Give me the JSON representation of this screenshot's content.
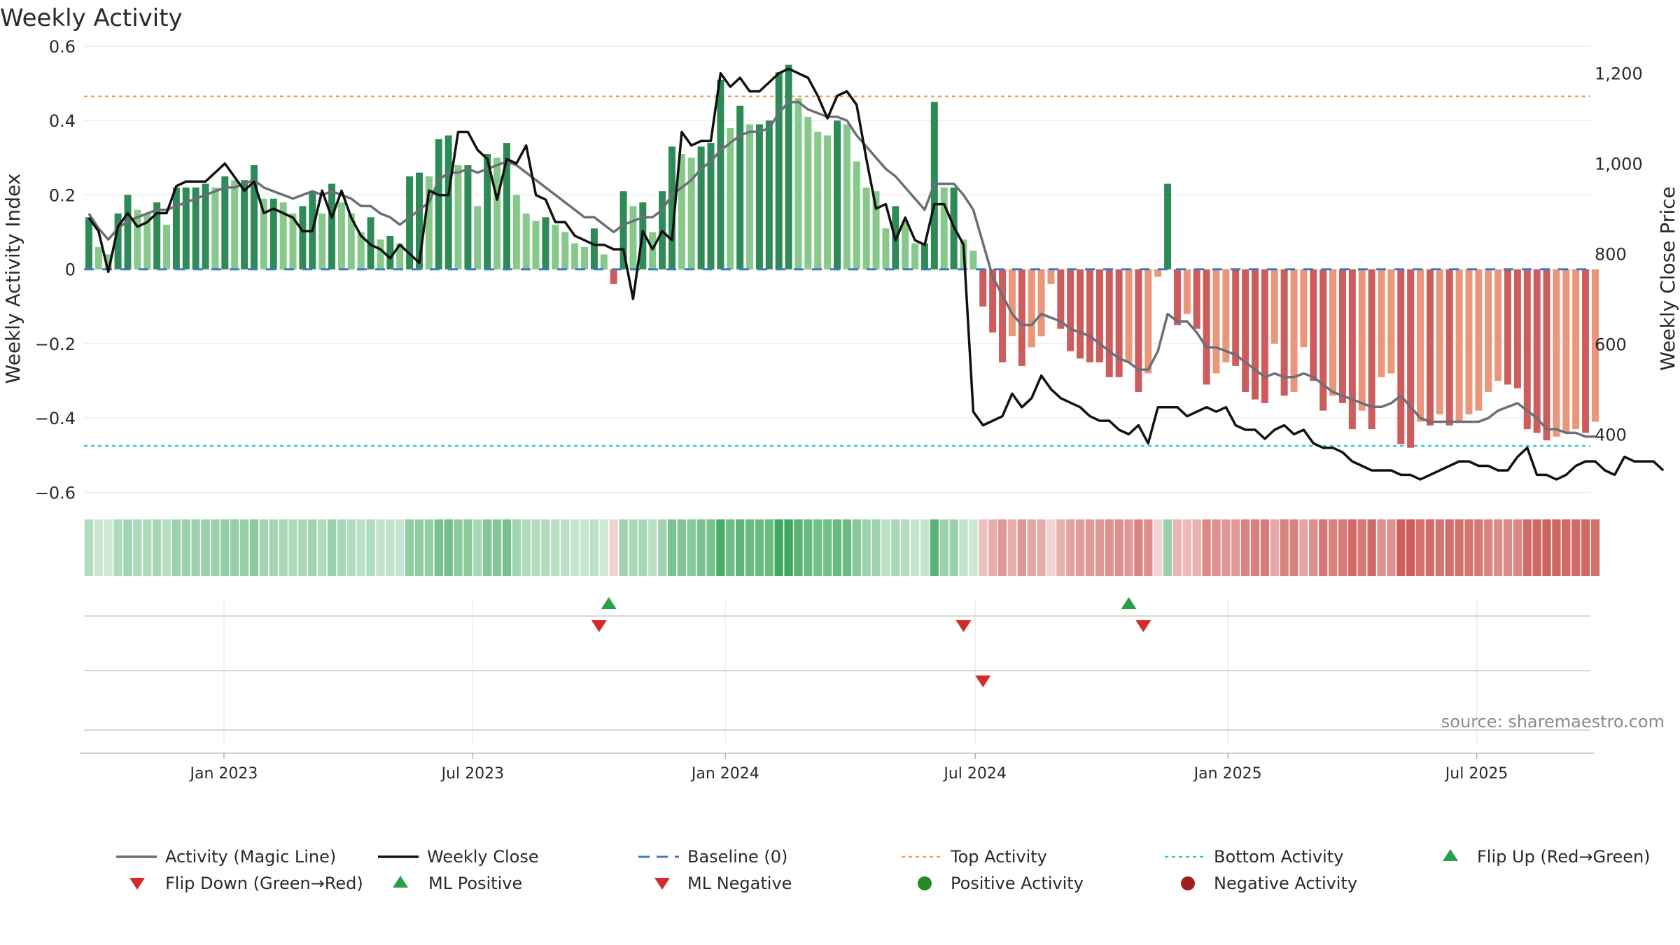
{
  "chart_data": {
    "type": "bar",
    "title": "Weekly Activity",
    "ylabel": "Weekly Activity Index",
    "y2label": "Weekly Close Price",
    "source": "source: sharemaestro.com",
    "ylim": [
      -0.65,
      0.6
    ],
    "y2lim": [
      230,
      1260
    ],
    "yticks": [
      0.6,
      0.4,
      0.2,
      0,
      -0.2,
      -0.4,
      -0.6
    ],
    "ytick_labels": [
      "0.6",
      "0.4",
      "0.2",
      "0",
      "−0.2",
      "−0.4",
      "−0.6"
    ],
    "y2ticks": [
      1200,
      1000,
      800,
      600,
      400
    ],
    "y2tick_labels": [
      "1,200",
      "1,000",
      "800",
      "600",
      "400"
    ],
    "x_range_weeks": [
      0,
      155
    ],
    "xticks": [
      {
        "label": "Jan 2023",
        "week": 14.4
      },
      {
        "label": "Jul 2023",
        "week": 40.0
      },
      {
        "label": "Jan 2024",
        "week": 66.0
      },
      {
        "label": "Jul 2024",
        "week": 91.7
      },
      {
        "label": "Jan 2025",
        "week": 117.7
      },
      {
        "label": "Jul 2025",
        "week": 143.3
      }
    ],
    "top_activity": 0.465,
    "bottom_activity": -0.475,
    "baseline": 0,
    "activity": [
      0.14,
      0.06,
      0.04,
      0.15,
      0.2,
      0.16,
      0.15,
      0.18,
      0.12,
      0.22,
      0.22,
      0.22,
      0.23,
      0.22,
      0.25,
      0.24,
      0.24,
      0.28,
      0.19,
      0.19,
      0.18,
      0.15,
      0.17,
      0.21,
      0.15,
      0.23,
      0.18,
      0.15,
      0.1,
      0.14,
      0.08,
      0.09,
      0.07,
      0.25,
      0.26,
      0.25,
      0.35,
      0.36,
      0.28,
      0.28,
      0.17,
      0.31,
      0.3,
      0.34,
      0.2,
      0.15,
      0.13,
      0.14,
      0.12,
      0.1,
      0.07,
      0.06,
      0.11,
      0.04,
      -0.04,
      0.21,
      0.17,
      0.18,
      0.1,
      0.21,
      0.33,
      0.31,
      0.3,
      0.33,
      0.34,
      0.51,
      0.38,
      0.44,
      0.39,
      0.39,
      0.4,
      0.53,
      0.55,
      0.46,
      0.41,
      0.37,
      0.36,
      0.4,
      0.39,
      0.29,
      0.22,
      0.21,
      0.11,
      0.17,
      0.13,
      0.07,
      0.07,
      0.45,
      0.22,
      0.22,
      0.08,
      0.05,
      -0.1,
      -0.17,
      -0.25,
      -0.18,
      -0.26,
      -0.21,
      -0.18,
      -0.04,
      -0.16,
      -0.22,
      -0.24,
      -0.25,
      -0.25,
      -0.29,
      -0.29,
      -0.25,
      -0.33,
      -0.28,
      -0.02,
      0.23,
      -0.15,
      -0.12,
      -0.16,
      -0.31,
      -0.28,
      -0.25,
      -0.26,
      -0.33,
      -0.35,
      -0.36,
      -0.2,
      -0.34,
      -0.33,
      -0.21,
      -0.3,
      -0.38,
      -0.34,
      -0.36,
      -0.43,
      -0.38,
      -0.43,
      -0.29,
      -0.28,
      -0.47,
      -0.48,
      -0.41,
      -0.42,
      -0.39,
      -0.42,
      -0.41,
      -0.39,
      -0.38,
      -0.33,
      -0.3,
      -0.31,
      -0.32,
      -0.43,
      -0.44,
      -0.46,
      -0.45,
      -0.44,
      -0.43,
      -0.44,
      -0.41
    ],
    "magic_line": [
      0.15,
      0.11,
      0.08,
      0.11,
      0.13,
      0.14,
      0.15,
      0.16,
      0.16,
      0.17,
      0.18,
      0.19,
      0.2,
      0.21,
      0.22,
      0.22,
      0.23,
      0.24,
      0.22,
      0.21,
      0.2,
      0.19,
      0.2,
      0.21,
      0.2,
      0.21,
      0.2,
      0.19,
      0.17,
      0.17,
      0.15,
      0.14,
      0.12,
      0.14,
      0.16,
      0.18,
      0.24,
      0.26,
      0.26,
      0.27,
      0.26,
      0.27,
      0.28,
      0.29,
      0.28,
      0.26,
      0.24,
      0.22,
      0.2,
      0.18,
      0.16,
      0.14,
      0.14,
      0.12,
      0.1,
      0.12,
      0.13,
      0.14,
      0.14,
      0.16,
      0.2,
      0.22,
      0.24,
      0.27,
      0.29,
      0.32,
      0.34,
      0.36,
      0.37,
      0.37,
      0.38,
      0.42,
      0.45,
      0.45,
      0.43,
      0.42,
      0.41,
      0.41,
      0.4,
      0.36,
      0.33,
      0.3,
      0.27,
      0.25,
      0.22,
      0.19,
      0.16,
      0.23,
      0.23,
      0.23,
      0.2,
      0.16,
      0.07,
      -0.02,
      -0.07,
      -0.12,
      -0.15,
      -0.15,
      -0.12,
      -0.13,
      -0.14,
      -0.16,
      -0.17,
      -0.18,
      -0.2,
      -0.22,
      -0.24,
      -0.25,
      -0.27,
      -0.27,
      -0.22,
      -0.12,
      -0.14,
      -0.14,
      -0.17,
      -0.21,
      -0.21,
      -0.22,
      -0.23,
      -0.25,
      -0.27,
      -0.29,
      -0.28,
      -0.29,
      -0.29,
      -0.28,
      -0.29,
      -0.31,
      -0.33,
      -0.34,
      -0.35,
      -0.36,
      -0.37,
      -0.37,
      -0.36,
      -0.34,
      -0.37,
      -0.4,
      -0.41,
      -0.41,
      -0.41,
      -0.41,
      -0.41,
      -0.41,
      -0.4,
      -0.38,
      -0.37,
      -0.36,
      -0.38,
      -0.4,
      -0.43,
      -0.43,
      -0.44,
      -0.44,
      -0.45,
      -0.45
    ],
    "weekly_close": [
      880,
      850,
      760,
      860,
      890,
      860,
      870,
      890,
      890,
      950,
      960,
      960,
      960,
      980,
      1000,
      970,
      940,
      960,
      890,
      900,
      890,
      880,
      850,
      850,
      940,
      880,
      940,
      880,
      840,
      820,
      810,
      790,
      820,
      800,
      780,
      940,
      930,
      930,
      1070,
      1070,
      1030,
      1010,
      920,
      1010,
      1000,
      1040,
      930,
      920,
      870,
      870,
      840,
      830,
      820,
      820,
      810,
      810,
      700,
      850,
      810,
      850,
      830,
      1070,
      1040,
      1050,
      1050,
      1200,
      1170,
      1190,
      1160,
      1160,
      1180,
      1200,
      1210,
      1200,
      1190,
      1150,
      1100,
      1150,
      1160,
      1130,
      1010,
      900,
      910,
      830,
      880,
      830,
      820,
      910,
      910,
      860,
      820,
      450,
      420,
      430,
      440,
      490,
      460,
      480,
      530,
      500,
      480,
      470,
      460,
      440,
      430,
      430,
      410,
      400,
      420,
      380,
      460,
      460,
      460,
      440,
      450,
      460,
      450,
      460,
      420,
      410,
      410,
      390,
      410,
      420,
      400,
      410,
      380,
      370,
      370,
      360,
      340,
      330,
      320,
      320,
      320,
      310,
      310,
      300,
      310,
      320,
      330,
      340,
      340,
      330,
      330,
      320,
      320,
      350,
      370,
      310,
      310,
      300,
      310,
      330,
      340,
      340,
      320,
      310,
      350,
      340,
      340,
      340,
      320
    ],
    "flip_down_weeks": [
      53,
      90.5,
      109
    ],
    "flip_up_weeks": [
      54,
      107.5
    ],
    "ml_negative_weeks": [
      92.5
    ],
    "legend": [
      "Activity (Magic Line)",
      "Weekly Close",
      "Baseline (0)",
      "Top Activity",
      "Bottom Activity",
      "Flip Up (Red→Green)",
      "Flip Down (Green→Red)",
      "ML Positive",
      "ML Negative",
      "Positive Activity",
      "Negative Activity"
    ]
  },
  "colors": {
    "pos_dark": "#2e8b57",
    "pos_light": "#86c98a",
    "neg_dark": "#cd5c5c",
    "neg_light": "#e9967a",
    "magic_line": "#6b7078",
    "close_line": "#111111",
    "baseline": "#3a7dbf",
    "top_line": "#f0a050",
    "bottom_line": "#30c8c8",
    "marker_green": "#27a146",
    "marker_red": "#d42a2a",
    "positive_dot": "#228b22",
    "negative_dot": "#a31d1d"
  }
}
